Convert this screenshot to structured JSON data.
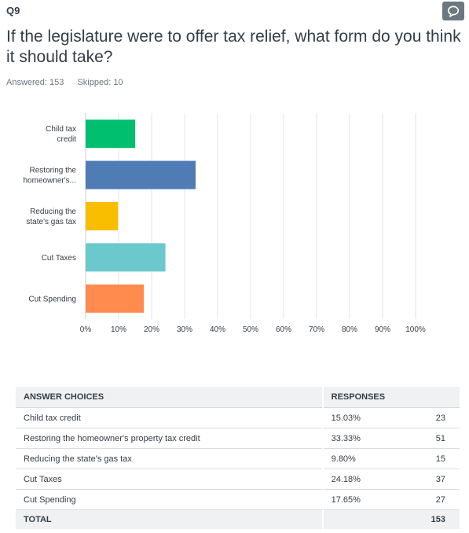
{
  "question": {
    "number": "Q9",
    "title": "If the legislature were to offer tax relief, what form do you think it should take?",
    "answered": "Answered: 153",
    "skipped": "Skipped: 10"
  },
  "icons": {
    "comment": "comment-bubble-icon"
  },
  "chart_data": {
    "type": "bar",
    "orientation": "horizontal",
    "categories": [
      [
        "Child tax",
        "credit"
      ],
      [
        "Restoring the",
        "homeowner's..."
      ],
      [
        "Reducing the",
        "state's gas tax"
      ],
      [
        "Cut Taxes"
      ],
      [
        "Cut Spending"
      ]
    ],
    "values": [
      15.03,
      33.33,
      9.8,
      24.18,
      17.65
    ],
    "colors": [
      "#00bf6f",
      "#507cb6",
      "#f9be00",
      "#6bc8cd",
      "#ff8b4f"
    ],
    "xlim": [
      0,
      100
    ],
    "xticks": [
      "0%",
      "10%",
      "20%",
      "30%",
      "40%",
      "50%",
      "60%",
      "70%",
      "80%",
      "90%",
      "100%"
    ],
    "grid": true
  },
  "table": {
    "headers": {
      "choice": "ANSWER CHOICES",
      "responses": "RESPONSES"
    },
    "rows": [
      {
        "label": "Child tax credit",
        "pct": "15.03%",
        "count": "23"
      },
      {
        "label": "Restoring the homeowner's property tax credit",
        "pct": "33.33%",
        "count": "51"
      },
      {
        "label": "Reducing the state's gas tax",
        "pct": "9.80%",
        "count": "15"
      },
      {
        "label": "Cut Taxes",
        "pct": "24.18%",
        "count": "37"
      },
      {
        "label": "Cut Spending",
        "pct": "17.65%",
        "count": "27"
      }
    ],
    "total": {
      "label": "TOTAL",
      "count": "153"
    }
  }
}
